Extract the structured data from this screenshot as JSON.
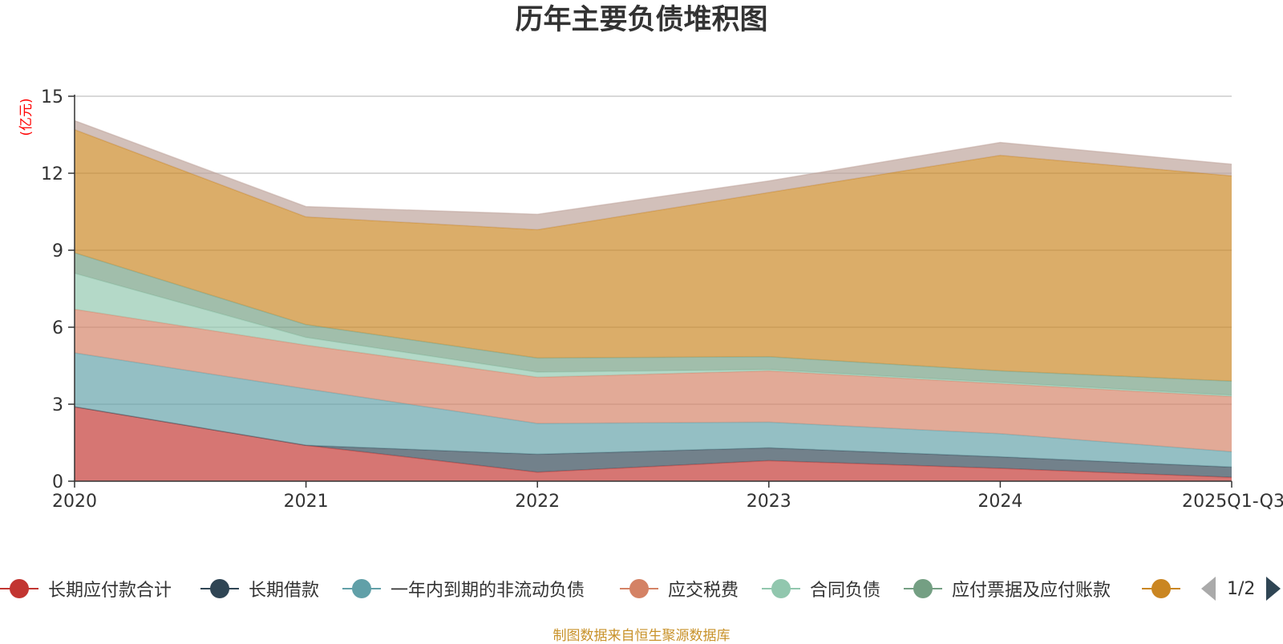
{
  "chart_data": {
    "type": "area",
    "stacked": true,
    "title": "历年主要负债堆积图",
    "ylabel": "(亿元)",
    "xlabel": "",
    "ylim": [
      0,
      15
    ],
    "yticks": [
      0,
      3,
      6,
      9,
      12,
      15
    ],
    "categories": [
      "2020",
      "2021",
      "2022",
      "2023",
      "2024",
      "2025Q1-Q3"
    ],
    "series": [
      {
        "name": "长期应付款合计",
        "color": "#c23531",
        "values": [
          2.9,
          1.4,
          0.35,
          0.8,
          0.5,
          0.15
        ]
      },
      {
        "name": "长期借款",
        "color": "#2f4554",
        "values": [
          0.0,
          0.0,
          0.7,
          0.5,
          0.45,
          0.4
        ]
      },
      {
        "name": "一年内到期的非流动负债",
        "color": "#61a0a8",
        "values": [
          2.1,
          2.2,
          1.2,
          1.0,
          0.9,
          0.6
        ]
      },
      {
        "name": "应交税费",
        "color": "#d48265",
        "values": [
          1.7,
          1.7,
          1.8,
          2.0,
          1.95,
          2.15
        ]
      },
      {
        "name": "合同负债",
        "color": "#91c7ae",
        "values": [
          1.4,
          0.3,
          0.2,
          0.05,
          0.05,
          0.05
        ]
      },
      {
        "name": "应付票据及应付账款",
        "color": "#749f83",
        "values": [
          0.8,
          0.5,
          0.55,
          0.5,
          0.45,
          0.55
        ]
      },
      {
        "name": "",
        "color": "#ca8622",
        "values": [
          4.8,
          4.2,
          5.0,
          6.4,
          8.4,
          8.0
        ]
      },
      {
        "name": "",
        "color": "#bda29a",
        "values": [
          0.35,
          0.4,
          0.6,
          0.45,
          0.5,
          0.45
        ]
      }
    ]
  },
  "legend": {
    "items": [
      {
        "label": "长期应付款合计",
        "color": "#c23531"
      },
      {
        "label": "长期借款",
        "color": "#2f4554"
      },
      {
        "label": "一年内到期的非流动负债",
        "color": "#61a0a8"
      },
      {
        "label": "应交税费",
        "color": "#d48265"
      },
      {
        "label": "合同负债",
        "color": "#91c7ae"
      },
      {
        "label": "应付票据及应付账款",
        "color": "#749f83"
      },
      {
        "label": "",
        "color": "#ca8622"
      }
    ],
    "page_indicator": "1/2"
  },
  "source_note": "制图数据来自恒生聚源数据库"
}
